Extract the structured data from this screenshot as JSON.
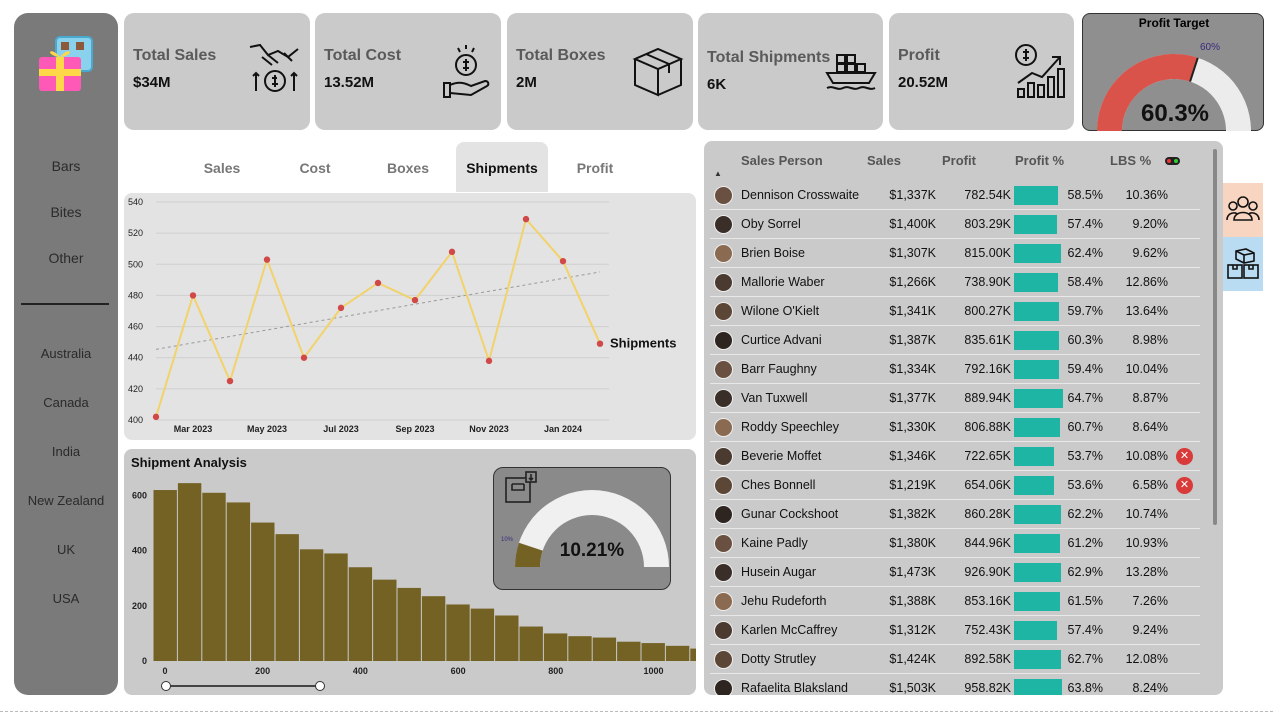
{
  "sidebar": {
    "categories": [
      "Bars",
      "Bites",
      "Other"
    ],
    "countries": [
      "Australia",
      "Canada",
      "India",
      "New Zealand",
      "UK",
      "USA"
    ]
  },
  "kpis": [
    {
      "label": "Total Sales",
      "value": "$34M",
      "icon": "money-handshake-icon"
    },
    {
      "label": "Total Cost",
      "value": "13.52M",
      "icon": "hand-coin-icon"
    },
    {
      "label": "Total Boxes",
      "value": "2M",
      "icon": "box-icon"
    },
    {
      "label": "Total Shipments",
      "value": "6K",
      "icon": "cargo-ship-icon"
    },
    {
      "label": "Profit",
      "value": "20.52M",
      "icon": "growth-chart-icon"
    }
  ],
  "profit_target": {
    "title": "Profit Target",
    "value": "60.3%",
    "target_label": "60%",
    "fraction": 0.603,
    "target_fraction": 0.6
  },
  "tabs": [
    "Sales",
    "Cost",
    "Boxes",
    "Shipments",
    "Profit"
  ],
  "active_tab": "Shipments",
  "shipment_analysis": {
    "title": "Shipment Analysis",
    "gauge_value": "10.21%",
    "gauge_min_label": "10%",
    "fraction": 0.1021
  },
  "table": {
    "headers": [
      "Sales Person",
      "Sales",
      "Profit",
      "Profit %",
      "LBS %"
    ],
    "rows": [
      {
        "name": "Dennison Crosswaite",
        "sales": "$1,337K",
        "profit": "782.54K",
        "pct": "58.5%",
        "lbs": "10.36%",
        "frac": 0.585,
        "flag": false
      },
      {
        "name": "Oby Sorrel",
        "sales": "$1,400K",
        "profit": "803.29K",
        "pct": "57.4%",
        "lbs": "9.20%",
        "frac": 0.574,
        "flag": false
      },
      {
        "name": "Brien Boise",
        "sales": "$1,307K",
        "profit": "815.00K",
        "pct": "62.4%",
        "lbs": "9.62%",
        "frac": 0.624,
        "flag": false
      },
      {
        "name": "Mallorie Waber",
        "sales": "$1,266K",
        "profit": "738.90K",
        "pct": "58.4%",
        "lbs": "12.86%",
        "frac": 0.584,
        "flag": false
      },
      {
        "name": "Wilone O'Kielt",
        "sales": "$1,341K",
        "profit": "800.27K",
        "pct": "59.7%",
        "lbs": "13.64%",
        "frac": 0.597,
        "flag": false
      },
      {
        "name": "Curtice Advani",
        "sales": "$1,387K",
        "profit": "835.61K",
        "pct": "60.3%",
        "lbs": "8.98%",
        "frac": 0.603,
        "flag": false
      },
      {
        "name": "Barr Faughny",
        "sales": "$1,334K",
        "profit": "792.16K",
        "pct": "59.4%",
        "lbs": "10.04%",
        "frac": 0.594,
        "flag": false
      },
      {
        "name": "Van Tuxwell",
        "sales": "$1,377K",
        "profit": "889.94K",
        "pct": "64.7%",
        "lbs": "8.87%",
        "frac": 0.647,
        "flag": false
      },
      {
        "name": "Roddy Speechley",
        "sales": "$1,330K",
        "profit": "806.88K",
        "pct": "60.7%",
        "lbs": "8.64%",
        "frac": 0.607,
        "flag": false
      },
      {
        "name": "Beverie Moffet",
        "sales": "$1,346K",
        "profit": "722.65K",
        "pct": "53.7%",
        "lbs": "10.08%",
        "frac": 0.537,
        "flag": true
      },
      {
        "name": "Ches Bonnell",
        "sales": "$1,219K",
        "profit": "654.06K",
        "pct": "53.6%",
        "lbs": "6.58%",
        "frac": 0.536,
        "flag": true
      },
      {
        "name": "Gunar Cockshoot",
        "sales": "$1,382K",
        "profit": "860.28K",
        "pct": "62.2%",
        "lbs": "10.74%",
        "frac": 0.622,
        "flag": false
      },
      {
        "name": "Kaine Padly",
        "sales": "$1,380K",
        "profit": "844.96K",
        "pct": "61.2%",
        "lbs": "10.93%",
        "frac": 0.612,
        "flag": false
      },
      {
        "name": "Husein Augar",
        "sales": "$1,473K",
        "profit": "926.90K",
        "pct": "62.9%",
        "lbs": "13.28%",
        "frac": 0.629,
        "flag": false
      },
      {
        "name": "Jehu Rudeforth",
        "sales": "$1,388K",
        "profit": "853.16K",
        "pct": "61.5%",
        "lbs": "7.26%",
        "frac": 0.615,
        "flag": false
      },
      {
        "name": "Karlen McCaffrey",
        "sales": "$1,312K",
        "profit": "752.43K",
        "pct": "57.4%",
        "lbs": "9.24%",
        "frac": 0.574,
        "flag": false
      },
      {
        "name": "Dotty Strutley",
        "sales": "$1,424K",
        "profit": "892.58K",
        "pct": "62.7%",
        "lbs": "12.08%",
        "frac": 0.627,
        "flag": false
      },
      {
        "name": "Rafaelita Blaksland",
        "sales": "$1,503K",
        "profit": "958.82K",
        "pct": "63.8%",
        "lbs": "8.24%",
        "frac": 0.638,
        "flag": false
      }
    ]
  },
  "colors": {
    "line": "#f2d26b",
    "point": "#d04848",
    "hist": "#746225",
    "gauge_red": "#d9534a",
    "bar": "#1fb5a4"
  },
  "chart_data": [
    {
      "type": "line",
      "series_label": "Shipments",
      "x": [
        "2023-02",
        "2023-03",
        "2023-04",
        "2023-05",
        "2023-06",
        "2023-07",
        "2023-08",
        "2023-09",
        "2023-10",
        "2023-11",
        "2023-12",
        "2024-01",
        "2024-02"
      ],
      "values": [
        402,
        480,
        425,
        503,
        440,
        472,
        488,
        477,
        508,
        438,
        529,
        502,
        449
      ],
      "tick_labels": [
        "Mar 2023",
        "May 2023",
        "Jul 2023",
        "Sep 2023",
        "Nov 2023",
        "Jan 2024"
      ],
      "y_ticks": [
        400,
        420,
        440,
        460,
        480,
        500,
        520,
        540
      ],
      "ylim": [
        400,
        540
      ],
      "trendline": true
    },
    {
      "type": "bar",
      "title": "Shipment Analysis",
      "values": [
        620,
        645,
        610,
        575,
        502,
        460,
        405,
        390,
        340,
        295,
        265,
        235,
        205,
        190,
        165,
        125,
        100,
        90,
        85,
        70,
        65,
        55,
        45,
        45,
        40,
        30
      ],
      "x_ticks": [
        0,
        200,
        400,
        600,
        800,
        1000
      ],
      "y_ticks": [
        0,
        200,
        400,
        600
      ],
      "ylim": [
        0,
        660
      ]
    }
  ]
}
